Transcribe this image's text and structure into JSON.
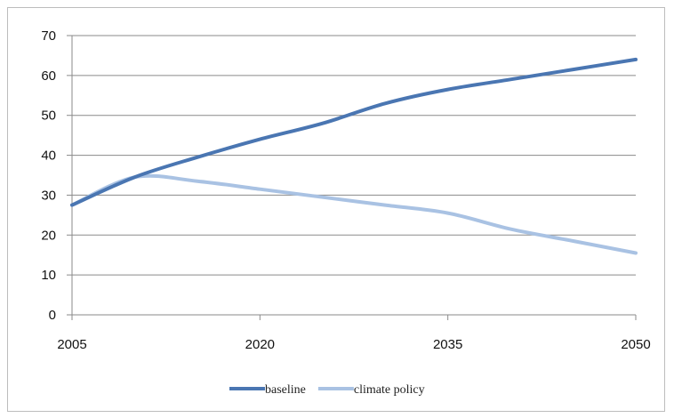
{
  "chart_data": {
    "type": "line",
    "title": "",
    "xlabel": "",
    "ylabel": "",
    "x": [
      2005,
      2010,
      2015,
      2020,
      2025,
      2030,
      2035,
      2040,
      2045,
      2050
    ],
    "xticks": [
      "2005",
      "2020",
      "2035",
      "2050"
    ],
    "xlim": [
      2005,
      2050
    ],
    "ylim": [
      0,
      70
    ],
    "yticks": [
      "0",
      "10",
      "20",
      "30",
      "40",
      "50",
      "60",
      "70"
    ],
    "grid": true,
    "legend_position": "bottom",
    "series": [
      {
        "name": "baseline",
        "color": "#4a76b2",
        "values": [
          27.5,
          34.5,
          39.5,
          44.0,
          48.0,
          53.0,
          56.5,
          59.0,
          61.5,
          64.0
        ]
      },
      {
        "name": "climate policy",
        "color": "#a9c2e3",
        "values": [
          27.5,
          34.5,
          33.5,
          31.5,
          29.5,
          27.5,
          25.5,
          21.5,
          18.5,
          15.5
        ]
      }
    ]
  }
}
